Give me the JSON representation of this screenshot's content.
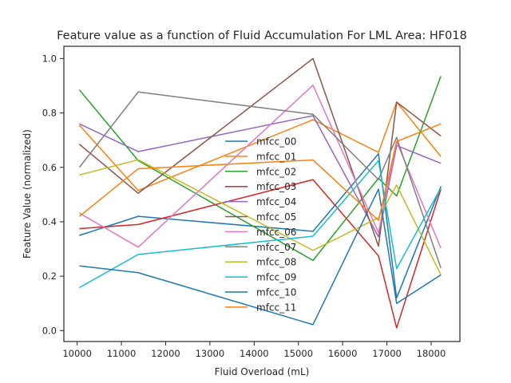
{
  "chart_data": {
    "type": "line",
    "title": "Feature value as a function of Fluid Accumulation For LML Area: HF018",
    "xlabel": "Fluid Overload (mL)",
    "ylabel": "Feature Value (normalized)",
    "xlim": [
      9700,
      18650
    ],
    "ylim": [
      -0.04,
      1.045
    ],
    "xticks": [
      10000,
      11000,
      12000,
      13000,
      14000,
      15000,
      16000,
      17000,
      18000
    ],
    "yticks": [
      0.0,
      0.2,
      0.4,
      0.6,
      0.8,
      1.0
    ],
    "grid": false,
    "legend_position": "center",
    "x": [
      10050,
      11380,
      15330,
      16810,
      17220,
      18220
    ],
    "series": [
      {
        "name": "mfcc_00",
        "color": "#1f77b4",
        "values": [
          0.35,
          0.42,
          0.365,
          0.65,
          0.12,
          0.53
        ]
      },
      {
        "name": "mfcc_01",
        "color": "#ff7f0e",
        "values": [
          0.755,
          0.515,
          0.775,
          0.655,
          0.84,
          0.64
        ]
      },
      {
        "name": "mfcc_02",
        "color": "#2ca02c",
        "values": [
          0.885,
          0.625,
          0.258,
          0.56,
          0.495,
          0.935
        ]
      },
      {
        "name": "mfcc_03",
        "color": "#d62728",
        "values": [
          0.375,
          0.39,
          0.555,
          0.275,
          0.01,
          0.52
        ]
      },
      {
        "name": "mfcc_04",
        "color": "#9467bd",
        "values": [
          0.76,
          0.658,
          0.79,
          0.345,
          0.68,
          0.615
        ]
      },
      {
        "name": "mfcc_05",
        "color": "#8c564b",
        "values": [
          0.685,
          0.505,
          1.0,
          0.31,
          0.84,
          0.715
        ]
      },
      {
        "name": "mfcc_06",
        "color": "#e377c2",
        "values": [
          0.432,
          0.307,
          0.902,
          0.36,
          0.695,
          0.303
        ]
      },
      {
        "name": "mfcc_07",
        "color": "#7f7f7f",
        "values": [
          0.6,
          0.877,
          0.795,
          0.555,
          0.71,
          0.23
        ]
      },
      {
        "name": "mfcc_08",
        "color": "#bcbd22",
        "values": [
          0.572,
          0.628,
          0.295,
          0.415,
          0.535,
          0.205
        ]
      },
      {
        "name": "mfcc_09",
        "color": "#17becf",
        "values": [
          0.158,
          0.28,
          0.347,
          0.625,
          0.228,
          0.525
        ]
      },
      {
        "name": "mfcc_10",
        "color": "#1f77b4",
        "values": [
          0.238,
          0.213,
          0.022,
          0.52,
          0.1,
          0.205
        ]
      },
      {
        "name": "mfcc_11",
        "color": "#ff7f0e",
        "values": [
          0.42,
          0.595,
          0.627,
          0.405,
          0.695,
          0.76
        ]
      }
    ]
  }
}
